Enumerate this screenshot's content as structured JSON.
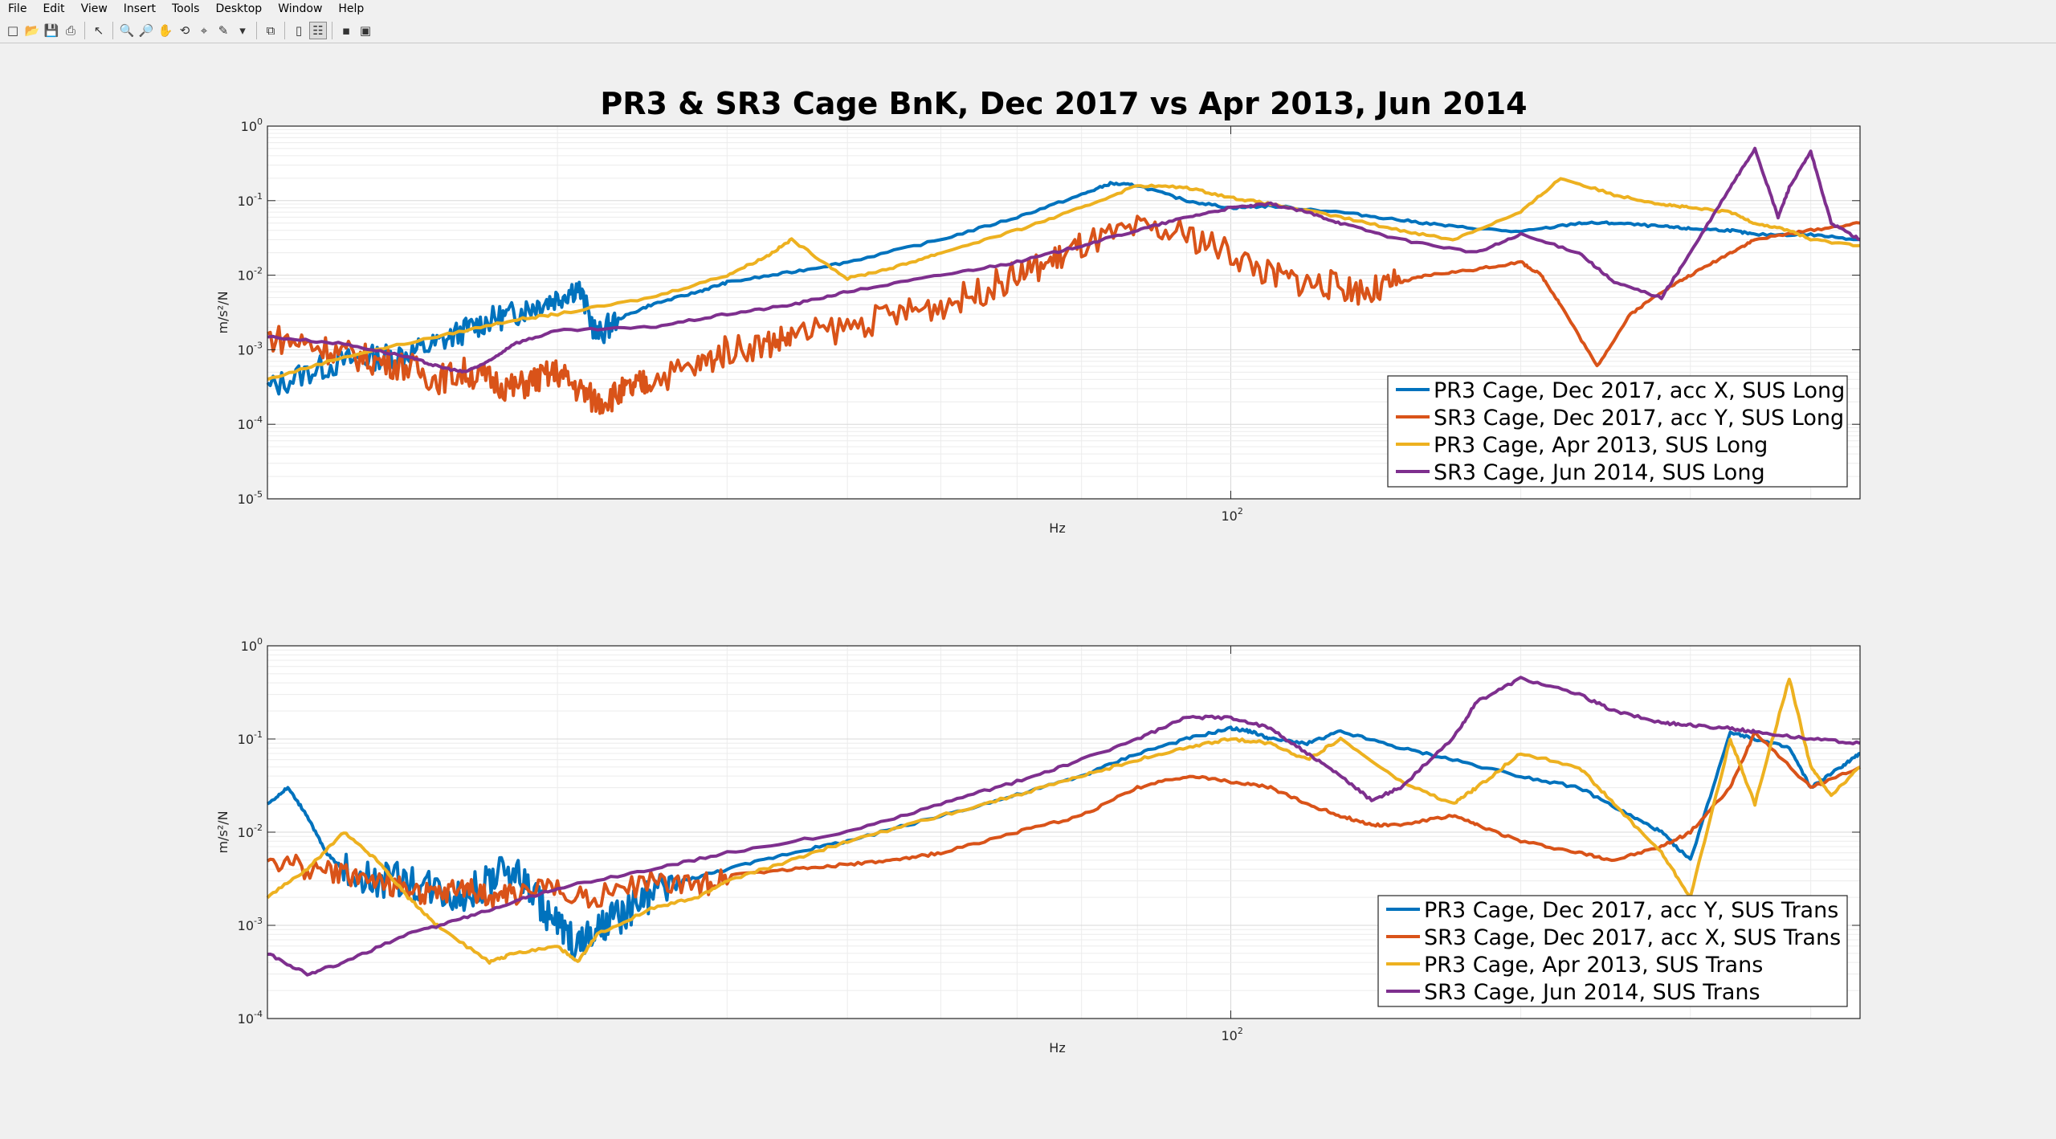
{
  "menubar": {
    "items": [
      {
        "label": "File",
        "name": "menu-file"
      },
      {
        "label": "Edit",
        "name": "menu-edit"
      },
      {
        "label": "View",
        "name": "menu-view"
      },
      {
        "label": "Insert",
        "name": "menu-insert"
      },
      {
        "label": "Tools",
        "name": "menu-tools"
      },
      {
        "label": "Desktop",
        "name": "menu-desktop"
      },
      {
        "label": "Window",
        "name": "menu-window"
      },
      {
        "label": "Help",
        "name": "menu-help"
      }
    ]
  },
  "toolbar": {
    "buttons": [
      {
        "icon": "new-figure-icon",
        "glyph": "□"
      },
      {
        "icon": "open-file-icon",
        "glyph": "📂"
      },
      {
        "icon": "save-icon",
        "glyph": "💾"
      },
      {
        "icon": "print-icon",
        "glyph": "⎙"
      },
      {
        "sep": true
      },
      {
        "icon": "select-arrow-icon",
        "glyph": "↖"
      },
      {
        "sep": true
      },
      {
        "icon": "zoom-in-icon",
        "glyph": "🔍"
      },
      {
        "icon": "zoom-out-icon",
        "glyph": "🔎"
      },
      {
        "icon": "pan-hand-icon",
        "glyph": "✋"
      },
      {
        "icon": "rotate-3d-icon",
        "glyph": "⟲"
      },
      {
        "icon": "data-cursor-icon",
        "glyph": "⌖"
      },
      {
        "icon": "brush-icon",
        "glyph": "✎"
      },
      {
        "icon": "dropdown-arrow-icon",
        "glyph": "▾"
      },
      {
        "sep": true
      },
      {
        "icon": "link-plot-icon",
        "glyph": "⧉"
      },
      {
        "sep": true
      },
      {
        "icon": "colorbar-icon",
        "glyph": "▯"
      },
      {
        "icon": "legend-icon",
        "glyph": "☷",
        "active": true
      },
      {
        "sep": true
      },
      {
        "icon": "hide-plot-tools-icon",
        "glyph": "▪"
      },
      {
        "icon": "show-plot-tools-icon",
        "glyph": "▣"
      }
    ]
  },
  "colors": {
    "blue": "#0072BD",
    "orange": "#D95319",
    "yellow": "#EDB120",
    "purple": "#7E2F8E",
    "background": "#f0f0f0",
    "axes_bg": "#ffffff"
  },
  "chart_data": [
    {
      "type": "line",
      "title": "PR3 & SR3 Cage BnK, Dec 2017 vs Apr 2013, Jun 2014",
      "xlabel": "Hz",
      "ylabel": "m/s²/N",
      "xscale": "log",
      "yscale": "log",
      "xlim": [
        10,
        450
      ],
      "ylim": [
        1e-05,
        1
      ],
      "xtick_labels": [
        {
          "base": "10",
          "exp": "2",
          "value": 100
        }
      ],
      "ytick_labels": [
        {
          "base": "10",
          "exp": "0",
          "value": 1
        },
        {
          "base": "10",
          "exp": "-1",
          "value": 0.1
        },
        {
          "base": "10",
          "exp": "-2",
          "value": 0.01
        },
        {
          "base": "10",
          "exp": "-3",
          "value": 0.001
        },
        {
          "base": "10",
          "exp": "-4",
          "value": 0.0001
        },
        {
          "base": "10",
          "exp": "-5",
          "value": 1e-05
        }
      ],
      "grid": true,
      "legend_location": "bottom-right",
      "series": [
        {
          "name": "PR3 Cage, Dec 2017, acc X, SUS Long",
          "color": "#0072BD",
          "x": [
            10,
            11,
            12,
            13,
            14,
            15,
            16,
            17,
            18,
            19,
            20,
            21,
            22,
            23,
            25,
            28,
            30,
            35,
            40,
            50,
            60,
            70,
            75,
            80,
            90,
            100,
            110,
            130,
            150,
            170,
            200,
            230,
            250,
            280,
            300,
            330,
            350,
            400,
            450
          ],
          "y": [
            0.0003,
            0.0005,
            0.0007,
            0.0008,
            0.0009,
            0.0012,
            0.0018,
            0.0025,
            0.003,
            0.004,
            0.005,
            0.007,
            0.0015,
            0.0025,
            0.004,
            0.006,
            0.008,
            0.011,
            0.015,
            0.03,
            0.06,
            0.12,
            0.17,
            0.16,
            0.1,
            0.08,
            0.085,
            0.07,
            0.055,
            0.045,
            0.038,
            0.05,
            0.05,
            0.045,
            0.042,
            0.04,
            0.035,
            0.035,
            0.03
          ],
          "noise": 0.35,
          "noise_range": [
            10,
            23
          ]
        },
        {
          "name": "SR3 Cage, Dec 2017, acc Y, SUS Long",
          "color": "#D95319",
          "x": [
            10,
            11,
            12,
            13,
            14,
            15,
            16,
            17,
            18,
            19,
            20,
            21,
            22,
            23,
            24,
            25,
            28,
            30,
            33,
            35,
            40,
            45,
            50,
            55,
            60,
            65,
            70,
            80,
            90,
            100,
            110,
            120,
            130,
            140,
            150,
            160,
            180,
            200,
            210,
            220,
            240,
            260,
            280,
            300,
            330,
            350,
            400,
            450
          ],
          "y": [
            0.0015,
            0.0012,
            0.0009,
            0.0007,
            0.0006,
            0.0004,
            0.0005,
            0.0004,
            0.0003,
            0.0004,
            0.0005,
            0.0003,
            0.0002,
            0.00025,
            0.0003,
            0.0004,
            0.0006,
            0.001,
            0.0012,
            0.0015,
            0.002,
            0.003,
            0.004,
            0.006,
            0.01,
            0.015,
            0.025,
            0.04,
            0.035,
            0.02,
            0.01,
            0.008,
            0.007,
            0.006,
            0.008,
            0.01,
            0.012,
            0.015,
            0.01,
            0.004,
            0.0006,
            0.003,
            0.006,
            0.01,
            0.02,
            0.03,
            0.04,
            0.05
          ],
          "noise": 0.4,
          "noise_range": [
            10,
            150
          ]
        },
        {
          "name": "PR3 Cage, Apr 2013, SUS Long",
          "color": "#EDB120",
          "x": [
            10,
            12,
            15,
            18,
            20,
            25,
            30,
            33,
            35,
            40,
            45,
            50,
            60,
            70,
            80,
            90,
            100,
            110,
            130,
            150,
            170,
            200,
            220,
            250,
            280,
            300,
            330,
            350,
            380,
            400,
            450
          ],
          "y": [
            0.0004,
            0.0008,
            0.0015,
            0.0025,
            0.003,
            0.005,
            0.01,
            0.018,
            0.03,
            0.009,
            0.013,
            0.02,
            0.04,
            0.08,
            0.16,
            0.15,
            0.11,
            0.09,
            0.06,
            0.04,
            0.03,
            0.07,
            0.2,
            0.12,
            0.09,
            0.08,
            0.07,
            0.05,
            0.04,
            0.03,
            0.025
          ]
        },
        {
          "name": "SR3 Cage, Jun 2014, SUS Long",
          "color": "#7E2F8E",
          "x": [
            10,
            12,
            14,
            15,
            16,
            17,
            18,
            20,
            25,
            30,
            35,
            40,
            50,
            60,
            70,
            80,
            90,
            100,
            110,
            120,
            130,
            150,
            180,
            200,
            230,
            250,
            280,
            300,
            330,
            350,
            370,
            380,
            400,
            420,
            450
          ],
          "y": [
            0.0015,
            0.0012,
            0.0008,
            0.0006,
            0.0005,
            0.0007,
            0.0012,
            0.0018,
            0.002,
            0.003,
            0.004,
            0.006,
            0.01,
            0.015,
            0.025,
            0.04,
            0.06,
            0.08,
            0.09,
            0.07,
            0.05,
            0.03,
            0.02,
            0.035,
            0.02,
            0.008,
            0.005,
            0.02,
            0.15,
            0.5,
            0.06,
            0.15,
            0.45,
            0.05,
            0.03
          ]
        }
      ]
    },
    {
      "type": "line",
      "title": "",
      "xlabel": "Hz",
      "ylabel": "m/s²/N",
      "xscale": "log",
      "yscale": "log",
      "xlim": [
        10,
        450
      ],
      "ylim": [
        0.0001,
        1
      ],
      "xtick_labels": [
        {
          "base": "10",
          "exp": "2",
          "value": 100
        }
      ],
      "ytick_labels": [
        {
          "base": "10",
          "exp": "0",
          "value": 1
        },
        {
          "base": "10",
          "exp": "-1",
          "value": 0.1
        },
        {
          "base": "10",
          "exp": "-2",
          "value": 0.01
        },
        {
          "base": "10",
          "exp": "-3",
          "value": 0.001
        },
        {
          "base": "10",
          "exp": "-4",
          "value": 0.0001
        }
      ],
      "grid": true,
      "legend_location": "bottom-right",
      "series": [
        {
          "name": "PR3 Cage, Dec 2017, acc Y, SUS Trans",
          "color": "#0072BD",
          "x": [
            10,
            10.5,
            11,
            11.5,
            12,
            13,
            14,
            15,
            16,
            17,
            18,
            19,
            20,
            21,
            22,
            23,
            24,
            25,
            27,
            30,
            35,
            40,
            50,
            60,
            70,
            80,
            90,
            100,
            105,
            110,
            120,
            130,
            150,
            170,
            200,
            230,
            260,
            280,
            300,
            330,
            350,
            380,
            400,
            430,
            450
          ],
          "y": [
            0.02,
            0.03,
            0.015,
            0.006,
            0.004,
            0.003,
            0.003,
            0.0025,
            0.002,
            0.003,
            0.004,
            0.002,
            0.001,
            0.0006,
            0.0008,
            0.0012,
            0.0015,
            0.002,
            0.003,
            0.004,
            0.006,
            0.008,
            0.015,
            0.025,
            0.04,
            0.07,
            0.1,
            0.13,
            0.12,
            0.1,
            0.09,
            0.12,
            0.08,
            0.06,
            0.04,
            0.03,
            0.015,
            0.01,
            0.005,
            0.12,
            0.1,
            0.08,
            0.03,
            0.05,
            0.07
          ],
          "noise": 0.4,
          "noise_range": [
            12,
            27
          ]
        },
        {
          "name": "SR3 Cage, Dec 2017, acc X, SUS Trans",
          "color": "#D95319",
          "x": [
            10,
            11,
            12,
            13,
            14,
            15,
            16,
            17,
            18,
            20,
            22,
            25,
            28,
            30,
            35,
            40,
            45,
            50,
            60,
            70,
            80,
            90,
            100,
            110,
            120,
            130,
            140,
            150,
            170,
            180,
            200,
            230,
            250,
            280,
            300,
            330,
            350,
            400,
            450
          ],
          "y": [
            0.005,
            0.004,
            0.0035,
            0.003,
            0.0025,
            0.002,
            0.0025,
            0.002,
            0.0022,
            0.0025,
            0.002,
            0.003,
            0.0025,
            0.0035,
            0.004,
            0.0045,
            0.005,
            0.006,
            0.01,
            0.015,
            0.03,
            0.04,
            0.035,
            0.03,
            0.02,
            0.015,
            0.012,
            0.012,
            0.015,
            0.012,
            0.008,
            0.006,
            0.005,
            0.007,
            0.01,
            0.03,
            0.12,
            0.03,
            0.05
          ],
          "noise": 0.25,
          "noise_range": [
            10,
            30
          ]
        },
        {
          "name": "PR3 Cage, Apr 2013, SUS Trans",
          "color": "#EDB120",
          "x": [
            10,
            11,
            12,
            13,
            14,
            15,
            17,
            18,
            20,
            21,
            22,
            25,
            28,
            30,
            35,
            40,
            50,
            60,
            70,
            80,
            90,
            100,
            110,
            120,
            130,
            150,
            170,
            180,
            200,
            230,
            250,
            280,
            300,
            330,
            350,
            380,
            400,
            420,
            450
          ],
          "y": [
            0.002,
            0.004,
            0.01,
            0.005,
            0.002,
            0.001,
            0.0004,
            0.0005,
            0.0006,
            0.0004,
            0.0008,
            0.0015,
            0.002,
            0.003,
            0.005,
            0.008,
            0.015,
            0.025,
            0.04,
            0.06,
            0.08,
            0.1,
            0.09,
            0.06,
            0.1,
            0.035,
            0.02,
            0.03,
            0.07,
            0.05,
            0.02,
            0.006,
            0.002,
            0.1,
            0.02,
            0.45,
            0.05,
            0.025,
            0.05
          ]
        },
        {
          "name": "SR3 Cage, Jun 2014, SUS Trans",
          "color": "#7E2F8E",
          "x": [
            10,
            11,
            12,
            14,
            16,
            18,
            20,
            25,
            30,
            40,
            50,
            60,
            70,
            80,
            90,
            100,
            110,
            120,
            130,
            140,
            150,
            170,
            180,
            200,
            230,
            250,
            280,
            300,
            330,
            350,
            400,
            450
          ],
          "y": [
            0.0005,
            0.0003,
            0.0004,
            0.0008,
            0.0012,
            0.0018,
            0.0025,
            0.004,
            0.006,
            0.01,
            0.02,
            0.035,
            0.06,
            0.1,
            0.17,
            0.17,
            0.13,
            0.07,
            0.04,
            0.022,
            0.03,
            0.1,
            0.25,
            0.45,
            0.3,
            0.2,
            0.15,
            0.14,
            0.13,
            0.12,
            0.1,
            0.09
          ]
        }
      ]
    }
  ]
}
